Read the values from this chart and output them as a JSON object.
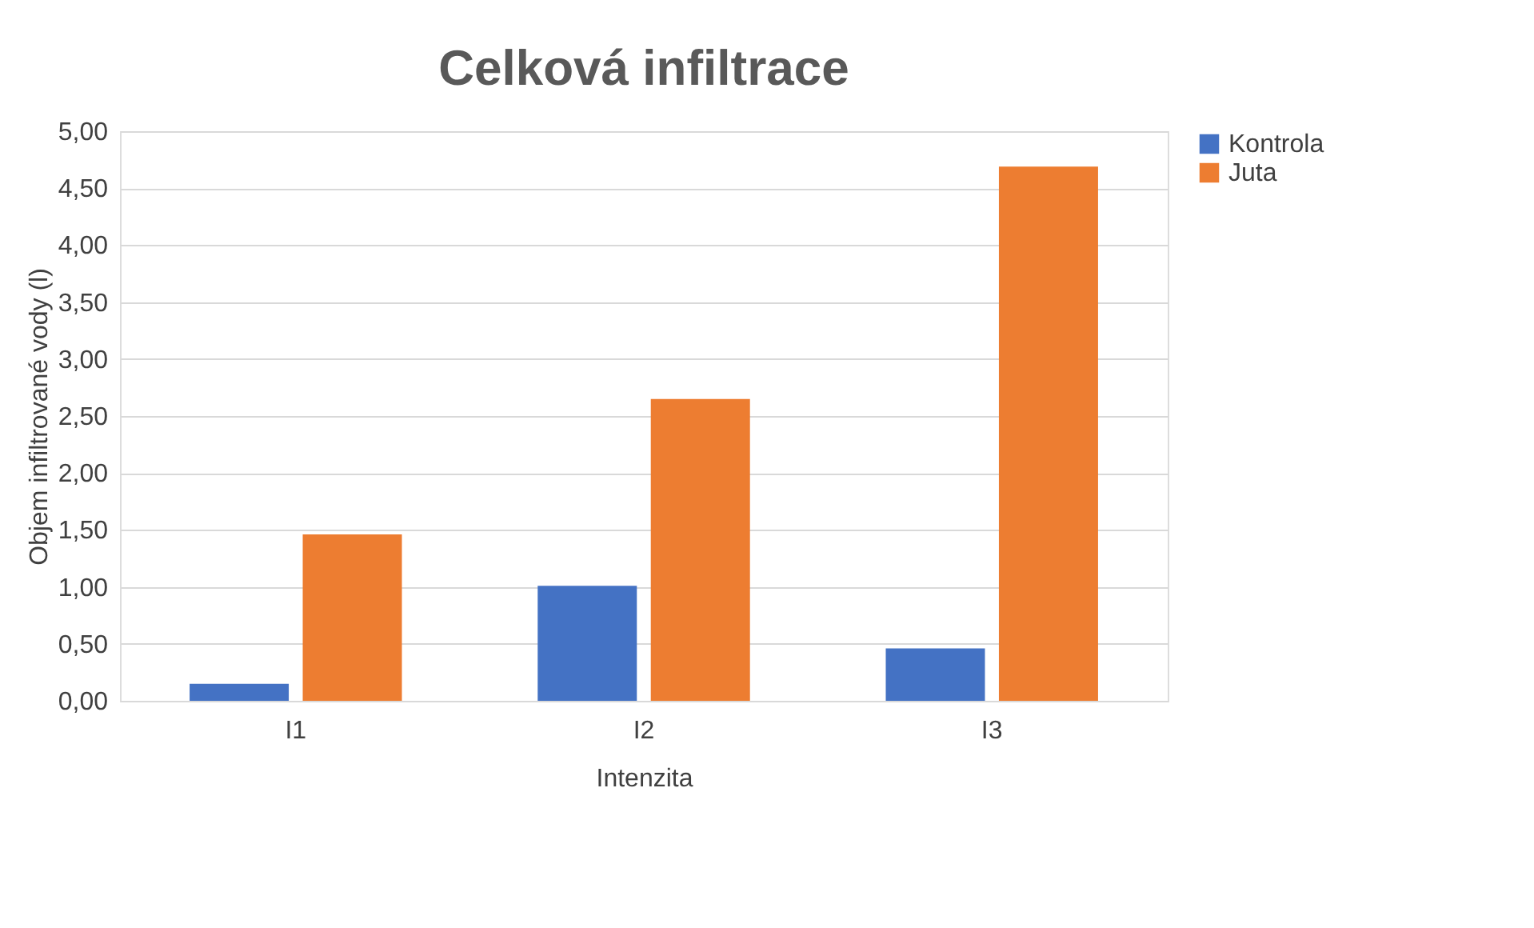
{
  "chart_data": {
    "type": "bar",
    "title": "Celková infiltrace",
    "xlabel": "Intenzita",
    "ylabel": "Objem infiltrované vody (l)",
    "categories": [
      "I1",
      "I2",
      "I3"
    ],
    "series": [
      {
        "name": "Kontrola",
        "color": "#4472c4",
        "values": [
          0.15,
          1.01,
          0.46
        ]
      },
      {
        "name": "Juta",
        "color": "#ed7d31",
        "values": [
          1.46,
          2.65,
          4.69
        ]
      }
    ],
    "ylim": [
      0,
      5
    ],
    "yticks": [
      {
        "value": 0,
        "label": "0,00"
      },
      {
        "value": 0.5,
        "label": "0,50"
      },
      {
        "value": 1,
        "label": "1,00"
      },
      {
        "value": 1.5,
        "label": "1,50"
      },
      {
        "value": 2,
        "label": "2,00"
      },
      {
        "value": 2.5,
        "label": "2,50"
      },
      {
        "value": 3,
        "label": "3,00"
      },
      {
        "value": 3.5,
        "label": "3,50"
      },
      {
        "value": 4,
        "label": "4,00"
      },
      {
        "value": 4.5,
        "label": "4,50"
      },
      {
        "value": 5,
        "label": "5,00"
      }
    ],
    "grid": "y",
    "legend": "right"
  }
}
